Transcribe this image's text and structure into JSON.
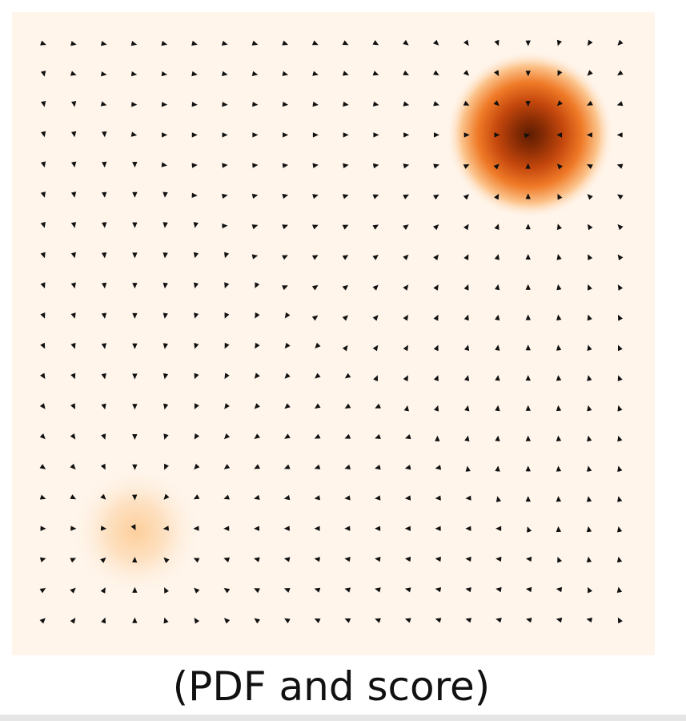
{
  "caption": "(PDF and score)",
  "figure": {
    "type": "density-and-score-field",
    "grid_size": 20,
    "colors": {
      "background": "#fff5eb",
      "density_light": "#fdd9ae",
      "density_mid": "#f7872c",
      "density_dark": "#b8420a",
      "density_peak": "#7f2704",
      "arrow": "#111111",
      "bottom_strip": "#e6e6e6"
    },
    "modes": [
      {
        "name": "upper-right-mode",
        "intensity": "high"
      },
      {
        "name": "lower-left-mode",
        "intensity": "low"
      }
    ]
  }
}
